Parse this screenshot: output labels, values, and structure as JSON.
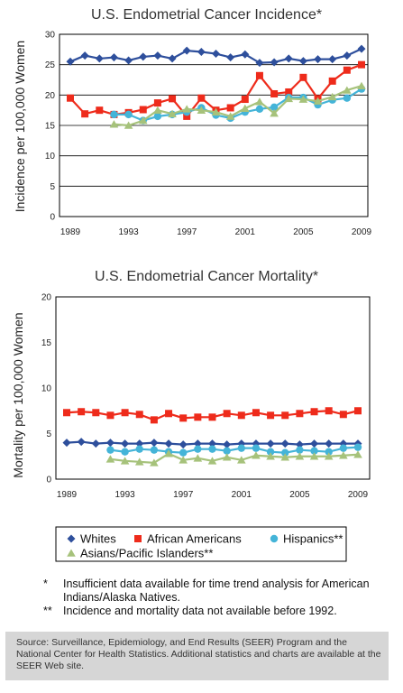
{
  "chart_data": [
    {
      "type": "line",
      "title": "U.S. Endometrial Cancer Incidence*",
      "ylabel": "Incidence per 100,000 Women",
      "xlabel": "",
      "ylim": [
        0,
        30
      ],
      "yticks": [
        0,
        5,
        10,
        15,
        20,
        25,
        30
      ],
      "xlim": [
        1989,
        2009
      ],
      "xtick_labels": [
        "1989",
        "1993",
        "1997",
        "2001",
        "2005",
        "2009"
      ],
      "grid": true,
      "series": [
        {
          "name": "Whites",
          "color": "#2e4f9c",
          "marker": "diamond",
          "x": [
            1989,
            1990,
            1991,
            1992,
            1993,
            1994,
            1995,
            1996,
            1997,
            1998,
            1999,
            2000,
            2001,
            2002,
            2003,
            2004,
            2005,
            2006,
            2007,
            2008,
            2009
          ],
          "values": [
            25.5,
            26.5,
            26.0,
            26.2,
            25.7,
            26.3,
            26.5,
            26.0,
            27.3,
            27.1,
            26.8,
            26.2,
            26.7,
            25.3,
            25.4,
            26.0,
            25.6,
            25.9,
            25.9,
            26.5,
            27.6
          ]
        },
        {
          "name": "African Americans",
          "color": "#ee2b1b",
          "marker": "square",
          "x": [
            1989,
            1990,
            1991,
            1992,
            1993,
            1994,
            1995,
            1996,
            1997,
            1998,
            1999,
            2000,
            2001,
            2002,
            2003,
            2004,
            2005,
            2006,
            2007,
            2008,
            2009
          ],
          "values": [
            19.5,
            16.9,
            17.5,
            16.8,
            17.1,
            17.6,
            18.7,
            19.4,
            16.5,
            19.5,
            17.5,
            17.9,
            19.3,
            23.2,
            20.2,
            20.5,
            22.9,
            19.4,
            22.3,
            24.1,
            25.0
          ]
        },
        {
          "name": "Hispanics**",
          "color": "#44b4d8",
          "marker": "circle",
          "x": [
            1992,
            1993,
            1994,
            1995,
            1996,
            1997,
            1998,
            1999,
            2000,
            2001,
            2002,
            2003,
            2004,
            2005,
            2006,
            2007,
            2008,
            2009
          ],
          "values": [
            16.8,
            16.8,
            15.8,
            16.5,
            16.8,
            17.2,
            17.9,
            16.7,
            16.2,
            17.2,
            17.7,
            18.0,
            19.6,
            19.6,
            18.4,
            19.2,
            19.5,
            21.0
          ]
        },
        {
          "name": "Asians/Pacific Islanders**",
          "color": "#a6c27b",
          "marker": "triangle",
          "x": [
            1992,
            1993,
            1994,
            1995,
            1996,
            1997,
            1998,
            1999,
            2000,
            2001,
            2002,
            2003,
            2004,
            2005,
            2006,
            2007,
            2008,
            2009
          ],
          "values": [
            15.2,
            15.0,
            15.8,
            17.5,
            16.9,
            17.7,
            17.5,
            17.2,
            16.5,
            17.8,
            18.9,
            17.0,
            19.4,
            19.3,
            19.0,
            19.7,
            20.8,
            21.5
          ]
        }
      ]
    },
    {
      "type": "line",
      "title": "U.S. Endometrial Cancer Mortality*",
      "ylabel": "Mortality per 100,000 Women",
      "xlabel": "",
      "ylim": [
        0,
        20
      ],
      "yticks": [
        0,
        5,
        10,
        15,
        20
      ],
      "xlim": [
        1989,
        2009
      ],
      "xtick_labels": [
        "1989",
        "1993",
        "1997",
        "2001",
        "2005",
        "2009"
      ],
      "grid": false,
      "series": [
        {
          "name": "Whites",
          "color": "#2e4f9c",
          "marker": "diamond",
          "x": [
            1989,
            1990,
            1991,
            1992,
            1993,
            1994,
            1995,
            1996,
            1997,
            1998,
            1999,
            2000,
            2001,
            2002,
            2003,
            2004,
            2005,
            2006,
            2007,
            2008,
            2009
          ],
          "values": [
            4.0,
            4.1,
            3.9,
            4.0,
            3.9,
            3.9,
            4.0,
            3.9,
            3.8,
            3.9,
            3.9,
            3.8,
            3.9,
            3.9,
            3.9,
            3.9,
            3.8,
            3.9,
            3.9,
            3.9,
            3.9
          ]
        },
        {
          "name": "African Americans",
          "color": "#ee2b1b",
          "marker": "square",
          "x": [
            1989,
            1990,
            1991,
            1992,
            1993,
            1994,
            1995,
            1996,
            1997,
            1998,
            1999,
            2000,
            2001,
            2002,
            2003,
            2004,
            2005,
            2006,
            2007,
            2008,
            2009
          ],
          "values": [
            7.3,
            7.4,
            7.3,
            7.0,
            7.3,
            7.1,
            6.5,
            7.2,
            6.7,
            6.8,
            6.8,
            7.2,
            7.0,
            7.3,
            7.0,
            7.0,
            7.2,
            7.4,
            7.5,
            7.1,
            7.5
          ]
        },
        {
          "name": "Hispanics**",
          "color": "#44b4d8",
          "marker": "circle",
          "x": [
            1992,
            1993,
            1994,
            1995,
            1996,
            1997,
            1998,
            1999,
            2000,
            2001,
            2002,
            2003,
            2004,
            2005,
            2006,
            2007,
            2008,
            2009
          ],
          "values": [
            3.2,
            3.0,
            3.3,
            3.2,
            3.0,
            2.9,
            3.3,
            3.3,
            3.1,
            3.4,
            3.4,
            3.0,
            2.9,
            3.2,
            3.1,
            3.0,
            3.4,
            3.5
          ]
        },
        {
          "name": "Asians/Pacific Islanders**",
          "color": "#a6c27b",
          "marker": "triangle",
          "x": [
            1992,
            1993,
            1994,
            1995,
            1996,
            1997,
            1998,
            1999,
            2000,
            2001,
            2002,
            2003,
            2004,
            2005,
            2006,
            2007,
            2008,
            2009
          ],
          "values": [
            2.2,
            2.0,
            1.9,
            1.8,
            2.8,
            2.1,
            2.3,
            2.0,
            2.4,
            2.1,
            2.6,
            2.5,
            2.4,
            2.5,
            2.5,
            2.5,
            2.6,
            2.7
          ]
        }
      ]
    }
  ],
  "legend": {
    "placement": "below charts",
    "items": [
      "Whites",
      "African Americans",
      "Hispanics**",
      "Asians/Pacific Islanders**"
    ]
  },
  "footnotes": [
    {
      "mark": "*",
      "text": "Insufficient data available for time trend analysis for American Indians/Alaska Natives."
    },
    {
      "mark": "**",
      "text": "Incidence and mortality data not available before 1992."
    }
  ],
  "source": "Source: Surveillance, Epidemiology, and End Results (SEER) Program and the National Center for Health Statistics. Additional statistics and charts are available at the SEER Web site."
}
